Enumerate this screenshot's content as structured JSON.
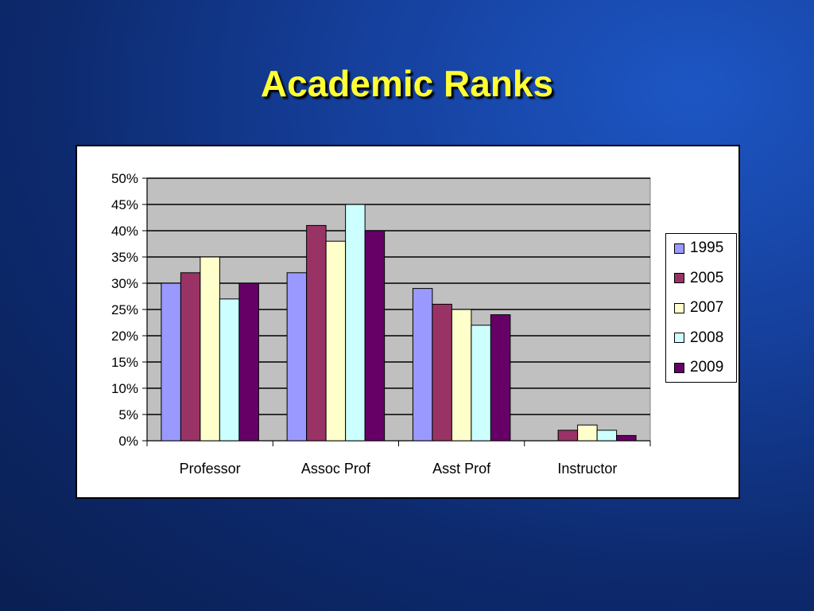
{
  "slide": {
    "title": "Academic Ranks"
  },
  "chart_data": {
    "type": "bar",
    "categories": [
      "Professor",
      "Assoc Prof",
      "Asst Prof",
      "Instructor"
    ],
    "series": [
      {
        "name": "1995",
        "color": "#9999ff",
        "values": [
          30,
          32,
          29,
          0
        ]
      },
      {
        "name": "2005",
        "color": "#993366",
        "values": [
          32,
          41,
          26,
          2
        ]
      },
      {
        "name": "2007",
        "color": "#ffffcc",
        "values": [
          35,
          38,
          25,
          3
        ]
      },
      {
        "name": "2008",
        "color": "#ccffff",
        "values": [
          27,
          45,
          22,
          2
        ]
      },
      {
        "name": "2009",
        "color": "#660066",
        "values": [
          30,
          40,
          24,
          1
        ]
      }
    ],
    "ylim": [
      0,
      50
    ],
    "y_ticks": [
      "0%",
      "5%",
      "10%",
      "15%",
      "20%",
      "25%",
      "30%",
      "35%",
      "40%",
      "45%",
      "50%"
    ],
    "y_unit": "%",
    "grid": true,
    "plot_background": "#c0c0c0",
    "legend_position": "right",
    "xlabel": "",
    "ylabel": ""
  }
}
